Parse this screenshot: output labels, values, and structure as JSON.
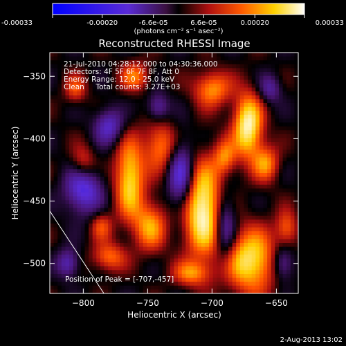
{
  "chart_data": {
    "type": "heatmap",
    "title": "Reconstructed RHESSI Image",
    "xlabel": "Heliocentric X (arcsec)",
    "ylabel": "Heliocentric Y (arcsec)",
    "xlim": [
      -826,
      -633
    ],
    "ylim": [
      -524,
      -331
    ],
    "x_ticks": [
      -800,
      -750,
      -700,
      -650
    ],
    "y_ticks": [
      -500,
      -450,
      -400,
      -350
    ],
    "colorbar": {
      "range": [
        -0.00033,
        0.00033
      ],
      "ticks": [
        {
          "value": -0.00033,
          "label": "-0.00033"
        },
        {
          "value": -0.0002,
          "label": "-0.00020"
        },
        {
          "value": -6.6e-05,
          "label": "-6.6e-05"
        },
        {
          "value": 6.6e-05,
          "label": "6.6e-05"
        },
        {
          "value": 0.0002,
          "label": "0.00020"
        },
        {
          "value": 0.00033,
          "label": "0.00033"
        }
      ],
      "unit_label": "(photons cm⁻² s⁻¹ asec⁻²)"
    },
    "info_lines": [
      "21-Jul-2010 04:28:12.000 to 04:30:36.000",
      "Detectors: 4F 5F 6F 7F 8F, Att 0",
      "Energy Range: 12.0 - 25.0 keV",
      "Clean     Total counts: 3.27E+03"
    ],
    "peak_annotation": "Position of Peak = [-707,-457]",
    "peak": {
      "x": -707,
      "y": -457
    },
    "limb_line": {
      "x": [
        -826,
        -784
      ],
      "y": [
        -458,
        -524
      ]
    },
    "hotspots": [
      {
        "x": -707,
        "y": -457,
        "sx": 11,
        "sy": 26,
        "a": 1.0
      },
      {
        "x": -672,
        "y": -390,
        "sx": 8,
        "sy": 18,
        "a": 0.95
      },
      {
        "x": -670,
        "y": -498,
        "sx": 14,
        "sy": 18,
        "a": 0.85
      },
      {
        "x": -764,
        "y": -432,
        "sx": 8,
        "sy": 22,
        "a": 0.8
      },
      {
        "x": -748,
        "y": -470,
        "sx": 9,
        "sy": 14,
        "a": 0.6
      },
      {
        "x": -740,
        "y": -406,
        "sx": 9,
        "sy": 14,
        "a": 0.55
      },
      {
        "x": -700,
        "y": -360,
        "sx": 10,
        "sy": 10,
        "a": 0.6
      },
      {
        "x": -658,
        "y": -420,
        "sx": 7,
        "sy": 10,
        "a": 0.55
      },
      {
        "x": -800,
        "y": -420,
        "sx": 7,
        "sy": 10,
        "a": 0.45
      },
      {
        "x": -780,
        "y": -495,
        "sx": 9,
        "sy": 8,
        "a": 0.5
      },
      {
        "x": -786,
        "y": -470,
        "sx": 6,
        "sy": 8,
        "a": 0.4
      },
      {
        "x": -690,
        "y": -415,
        "sx": 6,
        "sy": 10,
        "a": 0.5
      },
      {
        "x": -760,
        "y": -350,
        "sx": 8,
        "sy": 8,
        "a": 0.5
      },
      {
        "x": -716,
        "y": -508,
        "sx": 10,
        "sy": 7,
        "a": 0.5
      },
      {
        "x": -642,
        "y": -472,
        "sx": 6,
        "sy": 10,
        "a": 0.45
      },
      {
        "x": -806,
        "y": -360,
        "sx": 6,
        "sy": 8,
        "a": 0.4
      }
    ],
    "coldspots": [
      {
        "x": -800,
        "y": -440,
        "sx": 10,
        "sy": 14,
        "a": 0.7
      },
      {
        "x": -724,
        "y": -430,
        "sx": 7,
        "sy": 20,
        "a": 0.7
      },
      {
        "x": -690,
        "y": -470,
        "sx": 6,
        "sy": 20,
        "a": 0.6
      },
      {
        "x": -780,
        "y": -390,
        "sx": 8,
        "sy": 10,
        "a": 0.55
      },
      {
        "x": -645,
        "y": -500,
        "sx": 6,
        "sy": 10,
        "a": 0.5
      },
      {
        "x": -812,
        "y": -500,
        "sx": 6,
        "sy": 8,
        "a": 0.5
      },
      {
        "x": -742,
        "y": -375,
        "sx": 6,
        "sy": 8,
        "a": 0.45
      },
      {
        "x": -655,
        "y": -360,
        "sx": 6,
        "sy": 8,
        "a": 0.4
      }
    ]
  },
  "footer": {
    "date_stamp": "2-Aug-2013 13:02"
  }
}
